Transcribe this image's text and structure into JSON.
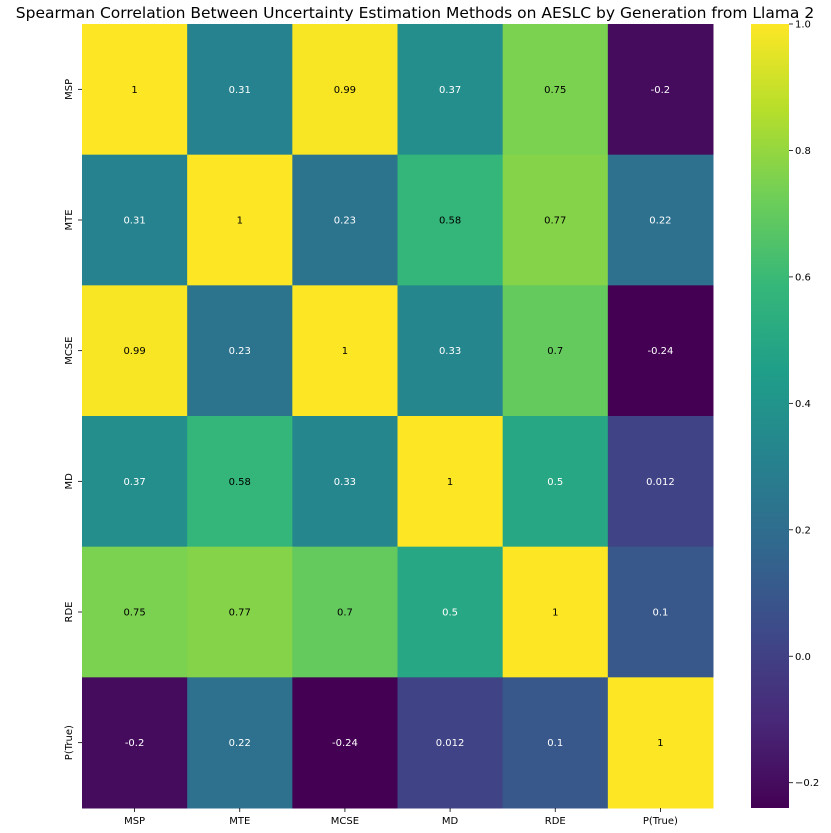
{
  "chart_data": {
    "type": "heatmap",
    "title": "Spearman Correlation Between Uncertainty Estimation Methods on AESLC by Generation from Llama 2",
    "rows": [
      "MSP",
      "MTE",
      "MCSE",
      "MD",
      "RDE",
      "P(True)"
    ],
    "columns": [
      "MSP",
      "MTE",
      "MCSE",
      "MD",
      "RDE",
      "P(True)"
    ],
    "values": [
      [
        1,
        0.31,
        0.99,
        0.37,
        0.75,
        -0.2
      ],
      [
        0.31,
        1,
        0.23,
        0.58,
        0.77,
        0.22
      ],
      [
        0.99,
        0.23,
        1,
        0.33,
        0.7,
        -0.24
      ],
      [
        0.37,
        0.58,
        0.33,
        1,
        0.5,
        0.012
      ],
      [
        0.75,
        0.77,
        0.7,
        0.5,
        1,
        0.1
      ],
      [
        -0.2,
        0.22,
        -0.24,
        0.012,
        0.1,
        1
      ]
    ],
    "cell_labels": [
      [
        "1",
        "0.31",
        "0.99",
        "0.37",
        "0.75",
        "-0.2"
      ],
      [
        "0.31",
        "1",
        "0.23",
        "0.58",
        "0.77",
        "0.22"
      ],
      [
        "0.99",
        "0.23",
        "1",
        "0.33",
        "0.7",
        "-0.24"
      ],
      [
        "0.37",
        "0.58",
        "0.33",
        "1",
        "0.5",
        "0.012"
      ],
      [
        "0.75",
        "0.77",
        "0.7",
        "0.5",
        "1",
        "0.1"
      ],
      [
        "-0.2",
        "0.22",
        "-0.24",
        "0.012",
        "0.1",
        "1"
      ]
    ],
    "colorscale": "viridis",
    "vmin": -0.24,
    "vmax": 1,
    "colorbar_ticks": [
      -0.2,
      0.0,
      0.2,
      0.4,
      0.6,
      0.8,
      1.0
    ],
    "colorbar_tick_labels": [
      "−0.2",
      "0.0",
      "0.2",
      "0.4",
      "0.6",
      "0.8",
      "1.0"
    ],
    "grid": false,
    "legend": "colorbar-right"
  }
}
